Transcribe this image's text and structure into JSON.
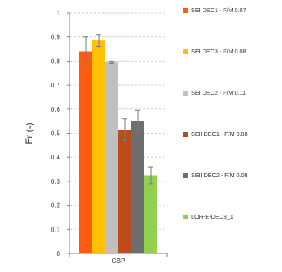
{
  "chart_data": {
    "type": "bar",
    "categories": [
      "GBP"
    ],
    "series": [
      {
        "name": "SEI DEC1 - F/M 0.07",
        "values": [
          0.84
        ],
        "error": [
          0.06
        ],
        "color": "#ff5b0e"
      },
      {
        "name": "SEI DEC3 - F/M 0.08",
        "values": [
          0.885
        ],
        "error": [
          0.025
        ],
        "color": "#ffc000"
      },
      {
        "name": "SEI DEC2 - F/M 0.11",
        "values": [
          0.795
        ],
        "error": [
          0.005
        ],
        "color": "#c0c0c0"
      },
      {
        "name": "SEII DEC1 - F/M 0.08",
        "values": [
          0.515
        ],
        "error": [
          0.045
        ],
        "color": "#bd4c1d"
      },
      {
        "name": "SEII DEC2 - F/M 0.08",
        "values": [
          0.55
        ],
        "error": [
          0.045
        ],
        "color": "#6e6e6e"
      },
      {
        "name": "LOR-E-DEC8_1",
        "values": [
          0.325
        ],
        "error": [
          0.035
        ],
        "color": "#92d050"
      }
    ],
    "ylabel": "Er (-)",
    "xlabel": "",
    "title": "",
    "ylim": [
      0,
      1
    ],
    "yticks": [
      0,
      0.1,
      0.2,
      0.3,
      0.4,
      0.5,
      0.6,
      0.7,
      0.8,
      0.9,
      1
    ],
    "ytick_labels": [
      "0",
      "0.1",
      "0.2",
      "0.3",
      "0.4",
      "0.5",
      "0.6",
      "0.7",
      "0.8",
      "0.9",
      "1"
    ],
    "grid": "horizontal dashed",
    "legend_position": "right"
  }
}
